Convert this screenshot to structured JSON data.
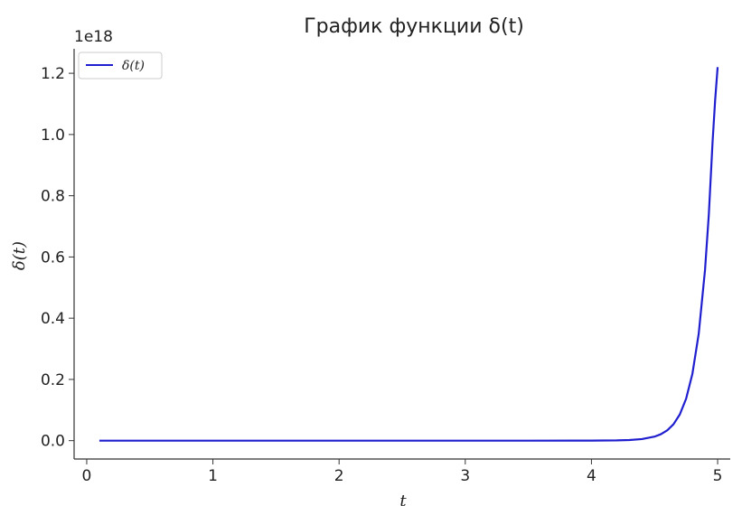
{
  "chart_data": {
    "type": "line",
    "title": "График функции δ(t)",
    "xlabel": "t",
    "ylabel": "δ(t)",
    "y_offset_text": "1e18",
    "xlim": [
      -0.1,
      5.1
    ],
    "ylim": [
      -0.06,
      1.28
    ],
    "x_ticks": [
      0,
      1,
      2,
      3,
      4,
      5
    ],
    "x_tick_labels": [
      "0",
      "1",
      "2",
      "3",
      "4",
      "5"
    ],
    "y_ticks": [
      0.0,
      0.2,
      0.4,
      0.6,
      0.8,
      1.0,
      1.2
    ],
    "y_tick_labels": [
      "0.0",
      "0.2",
      "0.4",
      "0.6",
      "0.8",
      "1.0",
      "1.2"
    ],
    "grid": false,
    "legend_position": "top-left",
    "series": [
      {
        "name": "δ(t)",
        "color": "#1f1fcf",
        "x": [
          0.1,
          0.5,
          1.0,
          1.5,
          2.0,
          2.5,
          3.0,
          3.5,
          4.0,
          4.2,
          4.3,
          4.4,
          4.5,
          4.55,
          4.6,
          4.65,
          4.7,
          4.75,
          4.8,
          4.85,
          4.9,
          4.93,
          4.96,
          4.98,
          5.0
        ],
        "values": [
          0.0,
          0.0,
          0.0,
          0.0,
          0.0,
          0.0,
          0.0,
          0.0,
          0.00012,
          0.00078,
          0.002,
          0.0051,
          0.0131,
          0.0209,
          0.0334,
          0.0534,
          0.0854,
          0.1366,
          0.2183,
          0.3489,
          0.5577,
          0.738,
          0.976,
          1.111,
          1.22
        ]
      }
    ]
  }
}
